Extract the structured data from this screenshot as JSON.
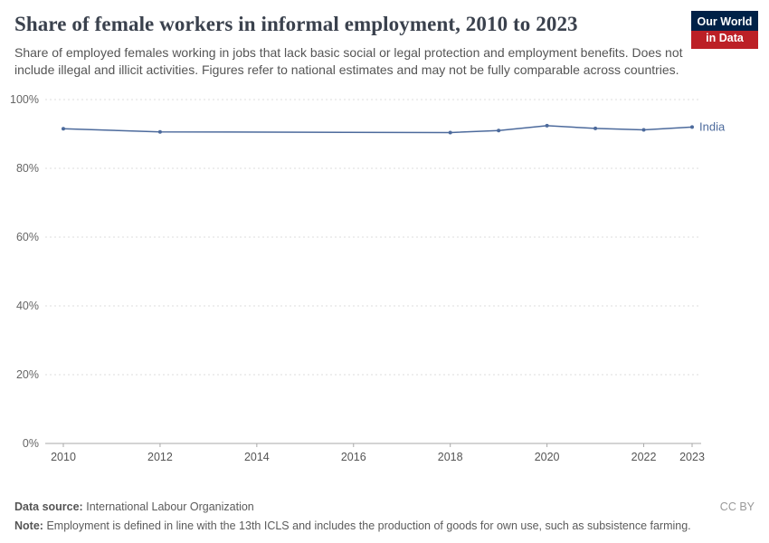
{
  "header": {
    "title": "Share of female workers in informal employment, 2010 to 2023",
    "subtitle": "Share of employed females working in jobs that lack basic social or legal protection and employment benefits. Does not include illegal and illicit activities. Figures refer to national estimates and may not be fully comparable across countries.",
    "logo": {
      "line1": "Our World",
      "line2": "in Data"
    }
  },
  "chart_data": {
    "type": "line",
    "title": "Share of female workers in informal employment, 2010 to 2023",
    "xlabel": "",
    "ylabel": "",
    "xlim": [
      2010,
      2023
    ],
    "ylim": [
      0,
      100
    ],
    "yticks": [
      0,
      20,
      40,
      60,
      80,
      100
    ],
    "ytick_suffix": "%",
    "xticks": [
      2010,
      2012,
      2014,
      2016,
      2018,
      2020,
      2022,
      2023
    ],
    "grid": "horizontal-dashed",
    "legend_position": "end-of-line-label",
    "series": [
      {
        "name": "India",
        "color": "#4C6A9C",
        "x": [
          2010,
          2012,
          2018,
          2019,
          2020,
          2021,
          2022,
          2023
        ],
        "values": [
          91.5,
          90.6,
          90.4,
          91.0,
          92.4,
          91.6,
          91.2,
          92.0
        ]
      }
    ]
  },
  "footer": {
    "source_label": "Data source:",
    "source_text": "International Labour Organization",
    "license": "CC BY",
    "note_label": "Note:",
    "note_text": "Employment is defined in line with the 13th ICLS and includes the production of goods for own use, such as subsistence farming."
  }
}
